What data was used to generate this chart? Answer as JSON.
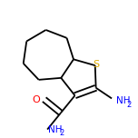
{
  "background_color": "#ffffff",
  "bond_color": "#000000",
  "atom_colors": {
    "S": "#ddaa00",
    "N": "#0000ff",
    "O": "#ff0000",
    "C": "#000000"
  },
  "line_width": 1.3,
  "font_size": 7.5,
  "figsize": [
    1.52,
    1.52
  ],
  "dpi": 100
}
